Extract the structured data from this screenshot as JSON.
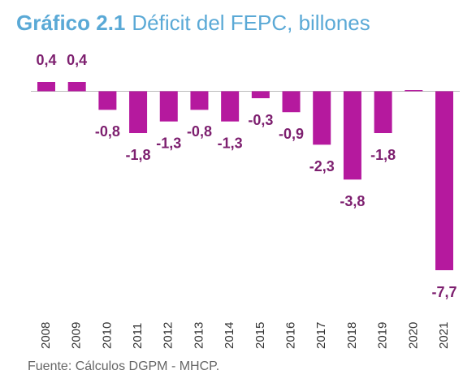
{
  "chart_data": {
    "type": "bar",
    "title": "Gráfico 2.1",
    "subtitle": "Déficit del FEPC, billones",
    "source": "Fuente: Cálculos DGPM - MHCP.",
    "categories": [
      "2008",
      "2009",
      "2010",
      "2011",
      "2012",
      "2013",
      "2014",
      "2015",
      "2016",
      "2017",
      "2018",
      "2019",
      "2020",
      "2021"
    ],
    "values": [
      0.4,
      0.4,
      -0.8,
      -1.8,
      -1.3,
      -0.8,
      -1.3,
      -0.3,
      -0.9,
      -2.3,
      -3.8,
      -1.8,
      0.05,
      -7.7
    ],
    "value_labels": [
      "0,4",
      "0,4",
      "-0,8",
      "-1,8",
      "-1,3",
      "-0,8",
      "-1,3",
      "-0,3",
      "-0,9",
      "-2,3",
      "-3,8",
      "-1,8",
      null,
      "-7,7"
    ],
    "color": "#b5199e",
    "label_color": "#7d1f6f"
  }
}
